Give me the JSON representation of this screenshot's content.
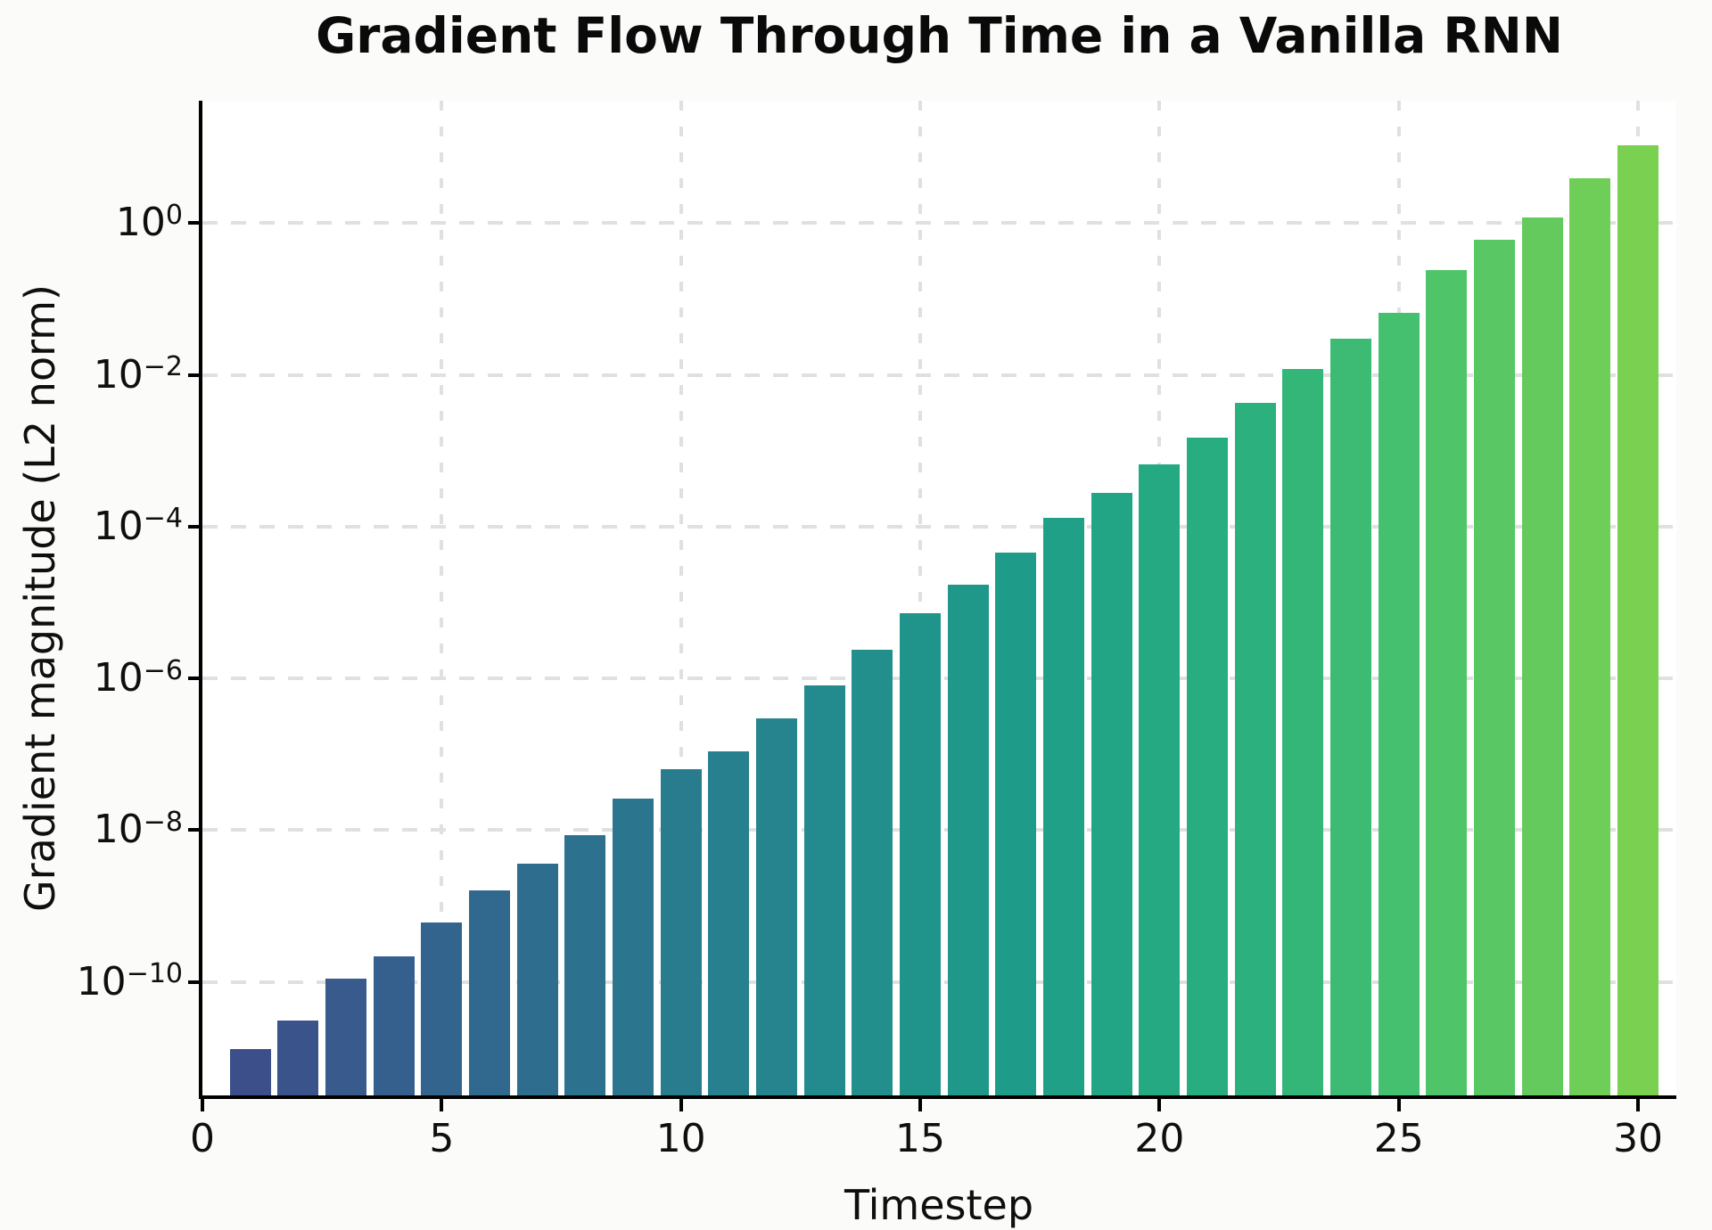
{
  "chart_data": {
    "type": "bar",
    "title": "Gradient Flow Through Time in a Vanilla RNN",
    "xlabel": "Timestep",
    "ylabel": "Gradient magnitude (L2 norm)",
    "x": [
      1,
      2,
      3,
      4,
      5,
      6,
      7,
      8,
      9,
      10,
      11,
      12,
      13,
      14,
      15,
      16,
      17,
      18,
      19,
      20,
      21,
      22,
      23,
      24,
      25,
      26,
      27,
      28,
      29,
      30
    ],
    "values": [
      1.3e-11,
      3.1e-11,
      1.1e-10,
      2.2e-10,
      6e-10,
      1.6e-09,
      3.6e-09,
      8.5e-09,
      2.6e-08,
      6.3e-08,
      1.1e-07,
      3e-07,
      8e-07,
      2.4e-06,
      7.3e-06,
      1.7e-05,
      4.5e-05,
      0.00013,
      0.00028,
      0.00066,
      0.0015,
      0.0043,
      0.012,
      0.03,
      0.066,
      0.24,
      0.6,
      1.2,
      3.9,
      10.5
    ],
    "colormap": "viridis",
    "bar_colors": [
      "#3c4f8a",
      "#3a548b",
      "#385a8c",
      "#355f8d",
      "#33648d",
      "#31688e",
      "#2e6d8e",
      "#2c728e",
      "#2b768e",
      "#297b8e",
      "#27808e",
      "#25848e",
      "#238a8d",
      "#228f8c",
      "#20938b",
      "#1f988a",
      "#1e9c89",
      "#1fa087",
      "#21a585",
      "#24a983",
      "#28ad80",
      "#2cb17e",
      "#34b679",
      "#3dbb74",
      "#45c06f",
      "#50c469",
      "#59c764",
      "#64ca5e",
      "#6fce57",
      "#7ad151"
    ],
    "yscale": "log",
    "ylim": [
      3.2e-12,
      41
    ],
    "xlim": [
      0,
      30.8
    ],
    "x_ticks": [
      0,
      5,
      10,
      15,
      20,
      25,
      30
    ],
    "y_tick_exponents": [
      0,
      -2,
      -4,
      -6,
      -8,
      -10
    ],
    "y_tick_base": "10",
    "grid": true,
    "grid_style": "dashed",
    "legend": "none",
    "bar_width_fraction": 0.86,
    "plot_background": "#ffffff",
    "grid_color": "#e0e0e0",
    "text_color": "#0f0f0f",
    "spine_color": "#000000"
  }
}
